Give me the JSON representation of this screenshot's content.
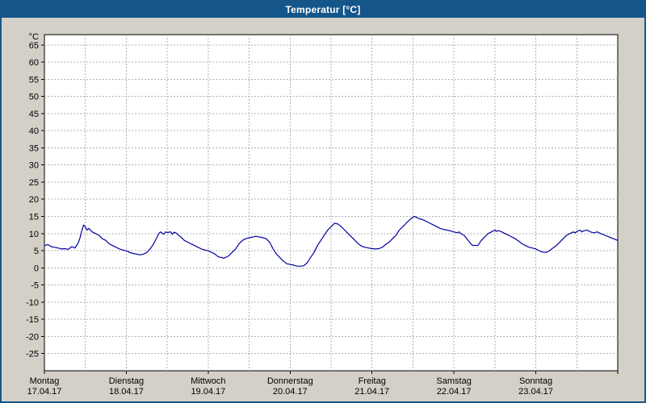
{
  "window": {
    "title": "Temperatur [°C]"
  },
  "colors": {
    "titlebar": "#15568a",
    "window_background": "#d4d0c8",
    "plot_background": "#ffffff",
    "grid": "#b0b0b0",
    "axis": "#000000",
    "line": "#0000a0"
  },
  "chart_data": {
    "type": "line",
    "title": "Temperatur [°C]",
    "ylabel": "°C",
    "ylim": [
      -30,
      68
    ],
    "y_ticks": [
      65,
      60,
      55,
      50,
      45,
      40,
      35,
      30,
      25,
      20,
      15,
      10,
      5,
      0,
      -5,
      -10,
      -15,
      -20,
      -25
    ],
    "grid": "dashed",
    "x_hours_total": 168,
    "x_minor_grid_hours": 12,
    "x_days": [
      {
        "name": "Montag",
        "date": "17.04.17"
      },
      {
        "name": "Dienstag",
        "date": "18.04.17"
      },
      {
        "name": "Mittwoch",
        "date": "19.04.17"
      },
      {
        "name": "Donnerstag",
        "date": "20.04.17"
      },
      {
        "name": "Freitag",
        "date": "21.04.17"
      },
      {
        "name": "Samstag",
        "date": "22.04.17"
      },
      {
        "name": "Sonntag",
        "date": "23.04.17"
      }
    ],
    "series": [
      {
        "name": "Temperatur",
        "color": "#0000a0",
        "points": [
          [
            0,
            6.5
          ],
          [
            1,
            6.8
          ],
          [
            2,
            6.2
          ],
          [
            3,
            6.0
          ],
          [
            4,
            5.8
          ],
          [
            5,
            5.5
          ],
          [
            6,
            5.6
          ],
          [
            7,
            5.4
          ],
          [
            8,
            6.2
          ],
          [
            9,
            5.8
          ],
          [
            10,
            7.5
          ],
          [
            10.5,
            9.0
          ],
          [
            11,
            11.0
          ],
          [
            11.5,
            12.5
          ],
          [
            12,
            12.0
          ],
          [
            12.5,
            11.0
          ],
          [
            13,
            11.5
          ],
          [
            14,
            10.5
          ],
          [
            15,
            10.0
          ],
          [
            16,
            9.5
          ],
          [
            17,
            8.5
          ],
          [
            18,
            8.0
          ],
          [
            19,
            7.0
          ],
          [
            20,
            6.5
          ],
          [
            21,
            6.0
          ],
          [
            22,
            5.5
          ],
          [
            23,
            5.2
          ],
          [
            24,
            5.0
          ],
          [
            25,
            4.5
          ],
          [
            26,
            4.2
          ],
          [
            27,
            4.0
          ],
          [
            28,
            3.8
          ],
          [
            29,
            4.0
          ],
          [
            30,
            4.5
          ],
          [
            31,
            5.5
          ],
          [
            32,
            7.0
          ],
          [
            33,
            9.0
          ],
          [
            33.5,
            10.0
          ],
          [
            34,
            10.5
          ],
          [
            35,
            9.8
          ],
          [
            35.5,
            10.5
          ],
          [
            36,
            10.3
          ],
          [
            37,
            10.5
          ],
          [
            37.5,
            9.8
          ],
          [
            38,
            10.4
          ],
          [
            38.5,
            10.2
          ],
          [
            39,
            9.8
          ],
          [
            40,
            9.0
          ],
          [
            41,
            8.0
          ],
          [
            42,
            7.5
          ],
          [
            43,
            7.0
          ],
          [
            44,
            6.5
          ],
          [
            45,
            6.0
          ],
          [
            46,
            5.5
          ],
          [
            47,
            5.2
          ],
          [
            48,
            5.0
          ],
          [
            49,
            4.5
          ],
          [
            50,
            4.0
          ],
          [
            51,
            3.2
          ],
          [
            52,
            3.0
          ],
          [
            52.5,
            2.8
          ],
          [
            53,
            3.0
          ],
          [
            54,
            3.5
          ],
          [
            55,
            4.5
          ],
          [
            56,
            5.5
          ],
          [
            57,
            7.0
          ],
          [
            58,
            8.0
          ],
          [
            59,
            8.5
          ],
          [
            60,
            8.8
          ],
          [
            61,
            9.0
          ],
          [
            62,
            9.2
          ],
          [
            63,
            9.0
          ],
          [
            64,
            8.8
          ],
          [
            65,
            8.5
          ],
          [
            66,
            7.5
          ],
          [
            67,
            5.5
          ],
          [
            68,
            4.0
          ],
          [
            69,
            3.0
          ],
          [
            70,
            2.0
          ],
          [
            71,
            1.2
          ],
          [
            72,
            1.0
          ],
          [
            73,
            0.8
          ],
          [
            74,
            0.5
          ],
          [
            75,
            0.5
          ],
          [
            76,
            0.6
          ],
          [
            77,
            1.5
          ],
          [
            78,
            3.0
          ],
          [
            79,
            4.5
          ],
          [
            80,
            6.5
          ],
          [
            81,
            8.0
          ],
          [
            82,
            9.5
          ],
          [
            83,
            11.0
          ],
          [
            84,
            12.0
          ],
          [
            85,
            13.0
          ],
          [
            86,
            12.8
          ],
          [
            87,
            12.0
          ],
          [
            88,
            11.0
          ],
          [
            89,
            10.0
          ],
          [
            90,
            9.0
          ],
          [
            91,
            8.0
          ],
          [
            92,
            7.0
          ],
          [
            93,
            6.3
          ],
          [
            94,
            6.0
          ],
          [
            95,
            5.8
          ],
          [
            96,
            5.6
          ],
          [
            97,
            5.5
          ],
          [
            98,
            5.6
          ],
          [
            99,
            6.0
          ],
          [
            100,
            6.8
          ],
          [
            101,
            7.5
          ],
          [
            102,
            8.5
          ],
          [
            103,
            9.5
          ],
          [
            104,
            11.0
          ],
          [
            105,
            12.0
          ],
          [
            106,
            13.0
          ],
          [
            107,
            14.0
          ],
          [
            108,
            14.8
          ],
          [
            108.5,
            15.0
          ],
          [
            109,
            14.7
          ],
          [
            110,
            14.3
          ],
          [
            111,
            14.0
          ],
          [
            112,
            13.5
          ],
          [
            113,
            13.0
          ],
          [
            114,
            12.5
          ],
          [
            115,
            12.0
          ],
          [
            116,
            11.5
          ],
          [
            117,
            11.2
          ],
          [
            118,
            11.0
          ],
          [
            119,
            10.8
          ],
          [
            120,
            10.5
          ],
          [
            121,
            10.2
          ],
          [
            121.5,
            10.5
          ],
          [
            122,
            10.0
          ],
          [
            123,
            9.5
          ],
          [
            124,
            8.2
          ],
          [
            125,
            7.0
          ],
          [
            125.5,
            6.5
          ],
          [
            126,
            6.6
          ],
          [
            127,
            6.5
          ],
          [
            128,
            8.0
          ],
          [
            129,
            9.0
          ],
          [
            130,
            10.0
          ],
          [
            131,
            10.5
          ],
          [
            132,
            11.0
          ],
          [
            132.5,
            10.6
          ],
          [
            133,
            10.9
          ],
          [
            134,
            10.5
          ],
          [
            135,
            10.0
          ],
          [
            136,
            9.5
          ],
          [
            137,
            9.0
          ],
          [
            138,
            8.5
          ],
          [
            139,
            7.8
          ],
          [
            140,
            7.0
          ],
          [
            141,
            6.5
          ],
          [
            142,
            6.0
          ],
          [
            143,
            5.8
          ],
          [
            144,
            5.5
          ],
          [
            145,
            5.0
          ],
          [
            146,
            4.6
          ],
          [
            147,
            4.5
          ],
          [
            148,
            5.0
          ],
          [
            149,
            5.8
          ],
          [
            150,
            6.5
          ],
          [
            151,
            7.5
          ],
          [
            152,
            8.5
          ],
          [
            153,
            9.5
          ],
          [
            154,
            10.0
          ],
          [
            155,
            10.5
          ],
          [
            155.5,
            10.2
          ],
          [
            156,
            10.6
          ],
          [
            157,
            11.0
          ],
          [
            157.5,
            10.5
          ],
          [
            158,
            10.8
          ],
          [
            159,
            11.0
          ],
          [
            160,
            10.5
          ],
          [
            161,
            10.2
          ],
          [
            162,
            10.5
          ],
          [
            163,
            10.0
          ],
          [
            164,
            9.6
          ],
          [
            165,
            9.2
          ],
          [
            166,
            8.8
          ],
          [
            167,
            8.4
          ],
          [
            168,
            8.0
          ]
        ]
      }
    ]
  }
}
